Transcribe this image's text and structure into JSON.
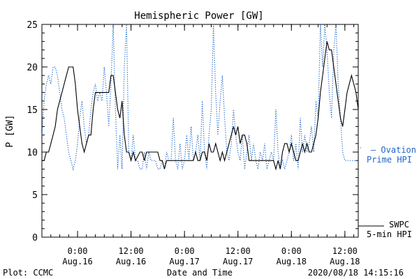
{
  "chart_data": {
    "type": "line",
    "title": "Hemispheric Power [GW]",
    "xlabel": "Date and Time",
    "ylabel": "P [GW]",
    "ylim": [
      0,
      25
    ],
    "xlim": [
      "2020-08-15T16:00",
      "2020-08-18T15:00"
    ],
    "grid": false,
    "y_ticks": [
      0,
      5,
      10,
      15,
      20,
      25
    ],
    "y_tick_labels": [
      "0",
      "5",
      "10",
      "15",
      "20",
      "25"
    ],
    "x_ticks": [
      {
        "t": "2020-08-16T00:00",
        "time": "0:00",
        "date": "Aug.16"
      },
      {
        "t": "2020-08-16T12:00",
        "time": "12:00",
        "date": "Aug.16"
      },
      {
        "t": "2020-08-17T00:00",
        "time": "0:00",
        "date": "Aug.17"
      },
      {
        "t": "2020-08-17T12:00",
        "time": "12:00",
        "date": "Aug.17"
      },
      {
        "t": "2020-08-18T00:00",
        "time": "0:00",
        "date": "Aug.18"
      },
      {
        "t": "2020-08-18T12:00",
        "time": "12:00",
        "date": "Aug.18"
      }
    ],
    "series": [
      {
        "name": "SWPC 5-min HPI",
        "label_lines": [
          "SWPC",
          "5-min HPI"
        ],
        "color": "#000000",
        "style": "solid",
        "points": [
          [
            "2020-08-15T16:00",
            9
          ],
          [
            "2020-08-15T16:30",
            9
          ],
          [
            "2020-08-15T17:00",
            10
          ],
          [
            "2020-08-15T17:30",
            10
          ],
          [
            "2020-08-15T18:00",
            11
          ],
          [
            "2020-08-15T18:30",
            12
          ],
          [
            "2020-08-15T19:00",
            13
          ],
          [
            "2020-08-15T19:30",
            15
          ],
          [
            "2020-08-15T20:00",
            16
          ],
          [
            "2020-08-15T20:30",
            17
          ],
          [
            "2020-08-15T21:00",
            18
          ],
          [
            "2020-08-15T21:30",
            19
          ],
          [
            "2020-08-15T22:00",
            20
          ],
          [
            "2020-08-15T23:00",
            20
          ],
          [
            "2020-08-15T23:30",
            18
          ],
          [
            "2020-08-16T00:00",
            15
          ],
          [
            "2020-08-16T00:30",
            13
          ],
          [
            "2020-08-16T01:00",
            11
          ],
          [
            "2020-08-16T01:30",
            10
          ],
          [
            "2020-08-16T02:00",
            11
          ],
          [
            "2020-08-16T02:30",
            12
          ],
          [
            "2020-08-16T03:00",
            12
          ],
          [
            "2020-08-16T03:30",
            15
          ],
          [
            "2020-08-16T04:00",
            17
          ],
          [
            "2020-08-16T07:00",
            17
          ],
          [
            "2020-08-16T07:30",
            19
          ],
          [
            "2020-08-16T08:00",
            19
          ],
          [
            "2020-08-16T08:30",
            17
          ],
          [
            "2020-08-16T09:00",
            15
          ],
          [
            "2020-08-16T09:30",
            14
          ],
          [
            "2020-08-16T10:00",
            16
          ],
          [
            "2020-08-16T10:30",
            12
          ],
          [
            "2020-08-16T11:00",
            10
          ],
          [
            "2020-08-16T11:30",
            10
          ],
          [
            "2020-08-16T12:00",
            9
          ],
          [
            "2020-08-16T12:30",
            10
          ],
          [
            "2020-08-16T13:00",
            9
          ],
          [
            "2020-08-16T14:00",
            10
          ],
          [
            "2020-08-16T14:30",
            10
          ],
          [
            "2020-08-16T15:00",
            9
          ],
          [
            "2020-08-16T15:30",
            10
          ],
          [
            "2020-08-16T18:00",
            10
          ],
          [
            "2020-08-16T18:30",
            9
          ],
          [
            "2020-08-16T19:00",
            9
          ],
          [
            "2020-08-16T19:30",
            8
          ],
          [
            "2020-08-16T20:00",
            9
          ],
          [
            "2020-08-17T02:00",
            9
          ],
          [
            "2020-08-17T02:30",
            10
          ],
          [
            "2020-08-17T03:00",
            9
          ],
          [
            "2020-08-17T03:30",
            9
          ],
          [
            "2020-08-17T04:00",
            10
          ],
          [
            "2020-08-17T04:30",
            10
          ],
          [
            "2020-08-17T05:00",
            9
          ],
          [
            "2020-08-17T05:30",
            11
          ],
          [
            "2020-08-17T06:00",
            10
          ],
          [
            "2020-08-17T06:30",
            10
          ],
          [
            "2020-08-17T07:00",
            11
          ],
          [
            "2020-08-17T07:30",
            10
          ],
          [
            "2020-08-17T08:00",
            9
          ],
          [
            "2020-08-17T08:30",
            10
          ],
          [
            "2020-08-17T09:00",
            9
          ],
          [
            "2020-08-17T09:30",
            10
          ],
          [
            "2020-08-17T10:00",
            11
          ],
          [
            "2020-08-17T10:30",
            12
          ],
          [
            "2020-08-17T11:00",
            13
          ],
          [
            "2020-08-17T11:30",
            12
          ],
          [
            "2020-08-17T12:00",
            13
          ],
          [
            "2020-08-17T12:30",
            11
          ],
          [
            "2020-08-17T13:00",
            12
          ],
          [
            "2020-08-17T13:30",
            12
          ],
          [
            "2020-08-17T14:00",
            11
          ],
          [
            "2020-08-17T14:30",
            9
          ],
          [
            "2020-08-17T20:00",
            9
          ],
          [
            "2020-08-17T20:30",
            8
          ],
          [
            "2020-08-17T21:00",
            9
          ],
          [
            "2020-08-17T21:30",
            8
          ],
          [
            "2020-08-17T22:00",
            10
          ],
          [
            "2020-08-17T22:30",
            11
          ],
          [
            "2020-08-17T23:00",
            11
          ],
          [
            "2020-08-17T23:30",
            10
          ],
          [
            "2020-08-18T00:00",
            11
          ],
          [
            "2020-08-18T00:30",
            10
          ],
          [
            "2020-08-18T01:00",
            9
          ],
          [
            "2020-08-18T01:30",
            9
          ],
          [
            "2020-08-18T02:00",
            10
          ],
          [
            "2020-08-18T02:30",
            11
          ],
          [
            "2020-08-18T03:00",
            10
          ],
          [
            "2020-08-18T03:30",
            11
          ],
          [
            "2020-08-18T04:00",
            10
          ],
          [
            "2020-08-18T04:30",
            10
          ],
          [
            "2020-08-18T05:00",
            11
          ],
          [
            "2020-08-18T05:30",
            12
          ],
          [
            "2020-08-18T06:00",
            14
          ],
          [
            "2020-08-18T06:30",
            17
          ],
          [
            "2020-08-18T07:00",
            19
          ],
          [
            "2020-08-18T07:30",
            21
          ],
          [
            "2020-08-18T08:00",
            23
          ],
          [
            "2020-08-18T08:30",
            22
          ],
          [
            "2020-08-18T09:00",
            22
          ],
          [
            "2020-08-18T09:30",
            20
          ],
          [
            "2020-08-18T10:00",
            18
          ],
          [
            "2020-08-18T10:30",
            16
          ],
          [
            "2020-08-18T11:00",
            14
          ],
          [
            "2020-08-18T11:30",
            13
          ],
          [
            "2020-08-18T12:00",
            15
          ],
          [
            "2020-08-18T12:30",
            17
          ],
          [
            "2020-08-18T13:00",
            18
          ],
          [
            "2020-08-18T13:30",
            19
          ],
          [
            "2020-08-18T14:00",
            18
          ],
          [
            "2020-08-18T14:30",
            17
          ],
          [
            "2020-08-18T15:00",
            15
          ]
        ]
      },
      {
        "name": "Ovation Prime HPI",
        "label_lines": [
          "— Ovation",
          "Prime HPI"
        ],
        "color": "#1e66c8",
        "style": "dotted",
        "points": [
          [
            "2020-08-15T16:00",
            12
          ],
          [
            "2020-08-15T16:30",
            16
          ],
          [
            "2020-08-15T17:00",
            18
          ],
          [
            "2020-08-15T17:30",
            19
          ],
          [
            "2020-08-15T18:00",
            18
          ],
          [
            "2020-08-15T18:30",
            20
          ],
          [
            "2020-08-15T19:00",
            20
          ],
          [
            "2020-08-15T19:30",
            19
          ],
          [
            "2020-08-15T20:00",
            17
          ],
          [
            "2020-08-15T20:30",
            15
          ],
          [
            "2020-08-15T21:00",
            14
          ],
          [
            "2020-08-15T21:30",
            12
          ],
          [
            "2020-08-15T22:00",
            10
          ],
          [
            "2020-08-15T22:30",
            9
          ],
          [
            "2020-08-15T23:00",
            8
          ],
          [
            "2020-08-15T23:30",
            9
          ],
          [
            "2020-08-16T00:00",
            11
          ],
          [
            "2020-08-16T00:30",
            14
          ],
          [
            "2020-08-16T01:00",
            16
          ],
          [
            "2020-08-16T01:30",
            13
          ],
          [
            "2020-08-16T02:00",
            11
          ],
          [
            "2020-08-16T02:30",
            12
          ],
          [
            "2020-08-16T03:00",
            15
          ],
          [
            "2020-08-16T03:30",
            17
          ],
          [
            "2020-08-16T04:00",
            18
          ],
          [
            "2020-08-16T04:30",
            16
          ],
          [
            "2020-08-16T05:00",
            17
          ],
          [
            "2020-08-16T05:30",
            16
          ],
          [
            "2020-08-16T06:00",
            20
          ],
          [
            "2020-08-16T06:30",
            17
          ],
          [
            "2020-08-16T07:00",
            13
          ],
          [
            "2020-08-16T07:30",
            18
          ],
          [
            "2020-08-16T08:00",
            25
          ],
          [
            "2020-08-16T08:30",
            15
          ],
          [
            "2020-08-16T09:00",
            8
          ],
          [
            "2020-08-16T09:30",
            12
          ],
          [
            "2020-08-16T10:00",
            8
          ],
          [
            "2020-08-16T10:30",
            20
          ],
          [
            "2020-08-16T11:00",
            25
          ],
          [
            "2020-08-16T11:30",
            10
          ],
          [
            "2020-08-16T12:00",
            9
          ],
          [
            "2020-08-16T12:30",
            12
          ],
          [
            "2020-08-16T13:00",
            9
          ],
          [
            "2020-08-16T13:30",
            9
          ],
          [
            "2020-08-16T14:00",
            8
          ],
          [
            "2020-08-16T14:30",
            8
          ],
          [
            "2020-08-16T15:00",
            10
          ],
          [
            "2020-08-16T15:30",
            8
          ],
          [
            "2020-08-16T16:00",
            10
          ],
          [
            "2020-08-16T16:30",
            9
          ],
          [
            "2020-08-16T17:00",
            9
          ],
          [
            "2020-08-16T17:30",
            9
          ],
          [
            "2020-08-16T18:00",
            8
          ],
          [
            "2020-08-16T18:30",
            8
          ],
          [
            "2020-08-16T19:00",
            9
          ],
          [
            "2020-08-16T19:30",
            8
          ],
          [
            "2020-08-16T20:00",
            10
          ],
          [
            "2020-08-16T20:30",
            9
          ],
          [
            "2020-08-16T21:00",
            9
          ],
          [
            "2020-08-16T21:30",
            14
          ],
          [
            "2020-08-16T22:00",
            9
          ],
          [
            "2020-08-16T22:30",
            8
          ],
          [
            "2020-08-16T23:00",
            11
          ],
          [
            "2020-08-16T23:30",
            8
          ],
          [
            "2020-08-17T00:00",
            9
          ],
          [
            "2020-08-17T00:30",
            12
          ],
          [
            "2020-08-17T01:00",
            9
          ],
          [
            "2020-08-17T01:30",
            13
          ],
          [
            "2020-08-17T02:00",
            9
          ],
          [
            "2020-08-17T02:30",
            10
          ],
          [
            "2020-08-17T03:00",
            12
          ],
          [
            "2020-08-17T03:30",
            9
          ],
          [
            "2020-08-17T04:00",
            16
          ],
          [
            "2020-08-17T04:30",
            10
          ],
          [
            "2020-08-17T05:00",
            8
          ],
          [
            "2020-08-17T05:30",
            12
          ],
          [
            "2020-08-17T06:00",
            15
          ],
          [
            "2020-08-17T06:30",
            25
          ],
          [
            "2020-08-17T07:00",
            17
          ],
          [
            "2020-08-17T07:30",
            12
          ],
          [
            "2020-08-17T08:00",
            16
          ],
          [
            "2020-08-17T08:30",
            19
          ],
          [
            "2020-08-17T09:00",
            14
          ],
          [
            "2020-08-17T09:30",
            10
          ],
          [
            "2020-08-17T10:00",
            9
          ],
          [
            "2020-08-17T10:30",
            11
          ],
          [
            "2020-08-17T11:00",
            15
          ],
          [
            "2020-08-17T11:30",
            12
          ],
          [
            "2020-08-17T12:00",
            10
          ],
          [
            "2020-08-17T12:30",
            9
          ],
          [
            "2020-08-17T13:00",
            12
          ],
          [
            "2020-08-17T13:30",
            8
          ],
          [
            "2020-08-17T14:00",
            10
          ],
          [
            "2020-08-17T14:30",
            12
          ],
          [
            "2020-08-17T15:00",
            9
          ],
          [
            "2020-08-17T15:30",
            11
          ],
          [
            "2020-08-17T16:00",
            9
          ],
          [
            "2020-08-17T16:30",
            8
          ],
          [
            "2020-08-17T17:00",
            10
          ],
          [
            "2020-08-17T17:30",
            9
          ],
          [
            "2020-08-17T18:00",
            11
          ],
          [
            "2020-08-17T18:30",
            8
          ],
          [
            "2020-08-17T19:00",
            9
          ],
          [
            "2020-08-17T19:30",
            10
          ],
          [
            "2020-08-17T20:00",
            9
          ],
          [
            "2020-08-17T20:30",
            15
          ],
          [
            "2020-08-17T21:00",
            10
          ],
          [
            "2020-08-17T21:30",
            8
          ],
          [
            "2020-08-17T22:00",
            9
          ],
          [
            "2020-08-17T22:30",
            8
          ],
          [
            "2020-08-17T23:00",
            9
          ],
          [
            "2020-08-17T23:30",
            10
          ],
          [
            "2020-08-18T00:00",
            12
          ],
          [
            "2020-08-18T00:30",
            9
          ],
          [
            "2020-08-18T01:00",
            11
          ],
          [
            "2020-08-18T01:30",
            8
          ],
          [
            "2020-08-18T02:00",
            14
          ],
          [
            "2020-08-18T02:30",
            10
          ],
          [
            "2020-08-18T03:00",
            12
          ],
          [
            "2020-08-18T03:30",
            10
          ],
          [
            "2020-08-18T04:00",
            11
          ],
          [
            "2020-08-18T04:30",
            13
          ],
          [
            "2020-08-18T05:00",
            10
          ],
          [
            "2020-08-18T05:30",
            16
          ],
          [
            "2020-08-18T06:00",
            14
          ],
          [
            "2020-08-18T06:30",
            25
          ],
          [
            "2020-08-18T07:00",
            20
          ],
          [
            "2020-08-18T07:30",
            25
          ],
          [
            "2020-08-18T08:00",
            22
          ],
          [
            "2020-08-18T08:30",
            17
          ],
          [
            "2020-08-18T09:00",
            14
          ],
          [
            "2020-08-18T09:30",
            22
          ],
          [
            "2020-08-18T10:00",
            25
          ],
          [
            "2020-08-18T10:30",
            18
          ],
          [
            "2020-08-18T11:00",
            14
          ],
          [
            "2020-08-18T11:30",
            10
          ],
          [
            "2020-08-18T12:00",
            9
          ],
          [
            "2020-08-18T12:30",
            9
          ],
          [
            "2020-08-18T13:00",
            9
          ],
          [
            "2020-08-18T13:30",
            9
          ],
          [
            "2020-08-18T14:00",
            9
          ],
          [
            "2020-08-18T14:30",
            9
          ],
          [
            "2020-08-18T15:00",
            9
          ]
        ]
      }
    ]
  },
  "footer": {
    "left": "Plot: CCMC",
    "center": "Date and Time",
    "right": "2020/08/18 14:15:16"
  },
  "colors": {
    "axis": "#000000",
    "observed_line": "#000000",
    "model_line": "#1e66c8"
  }
}
